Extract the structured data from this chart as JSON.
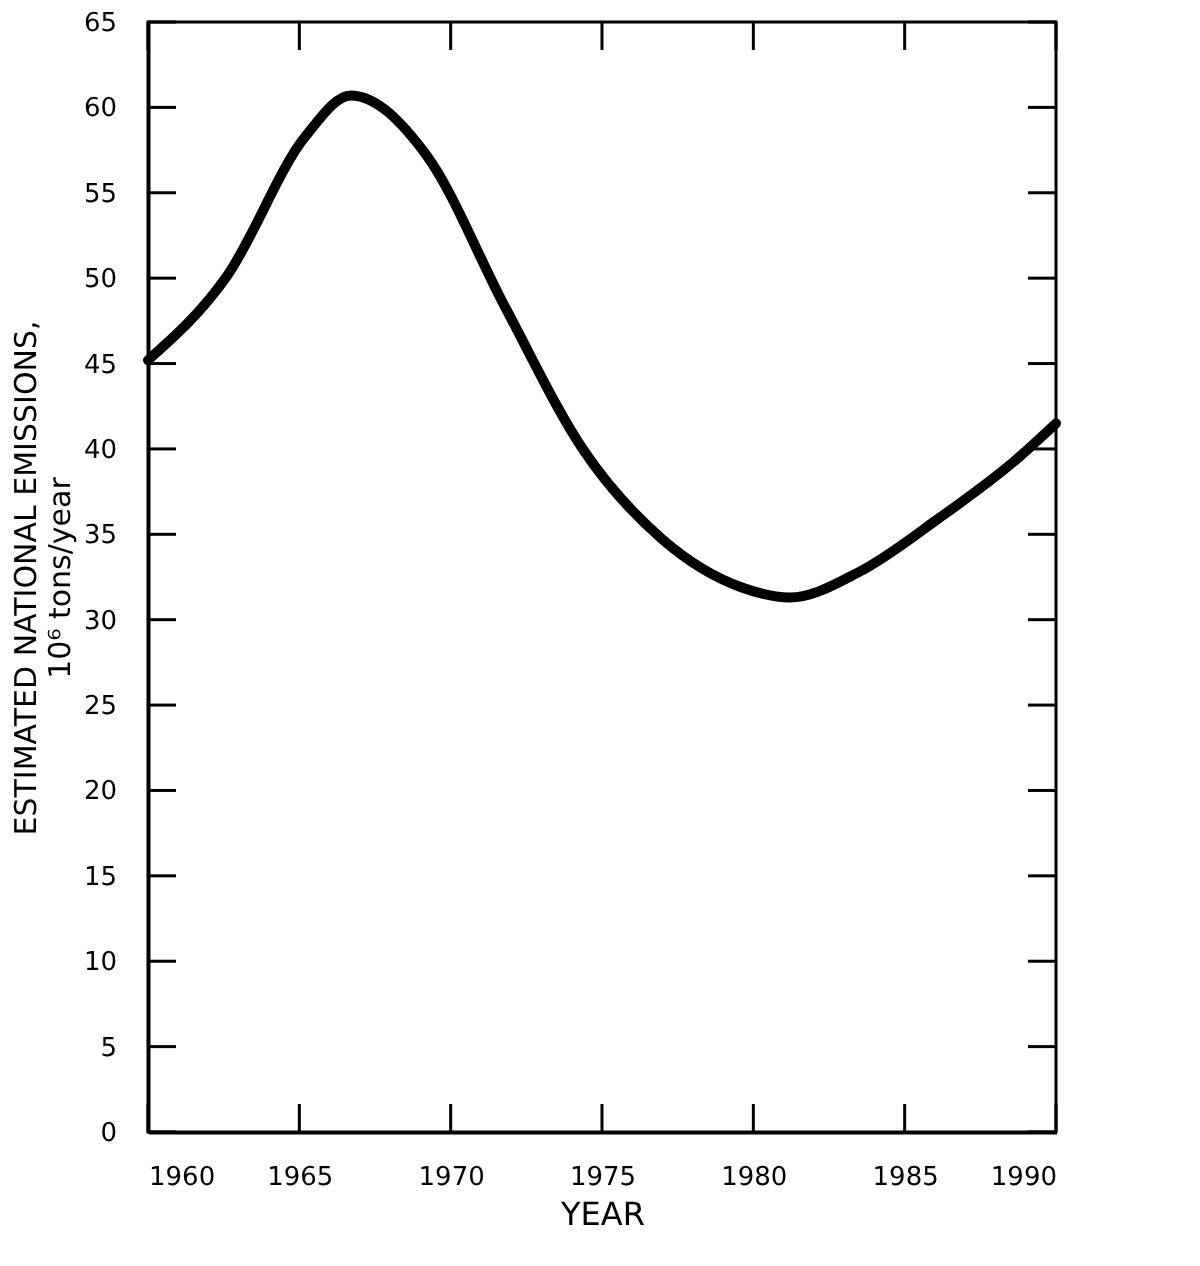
{
  "chart_data": {
    "type": "line",
    "xlabel": "YEAR",
    "ylabel": "ESTIMATED NATIONAL EMISSIONS,\n10⁶ tons/year",
    "x": [
      1960,
      1962.6,
      1965.2,
      1966.7,
      1969.2,
      1971.8,
      1974.4,
      1977,
      1979.6,
      1981.2,
      1983.5,
      1986.1,
      1988.7,
      1990
    ],
    "series": [
      {
        "color": "#000000",
        "values": [
          45.2,
          50.1,
          58.3,
          60.7,
          57.2,
          48.3,
          39.9,
          34.7,
          31.9,
          31.3,
          32.8,
          35.9,
          39.4,
          41.5
        ]
      }
    ],
    "xlim": [
      1960,
      1990
    ],
    "xticks": [
      1960,
      1965,
      1970,
      1975,
      1980,
      1985,
      1990
    ],
    "ylim": [
      0,
      65
    ],
    "yticks": [
      0,
      5,
      10,
      15,
      20,
      25,
      30,
      35,
      40,
      45,
      50,
      55,
      60,
      65
    ],
    "grid": false,
    "legend": false,
    "marker": "none",
    "line_style": "solid"
  }
}
